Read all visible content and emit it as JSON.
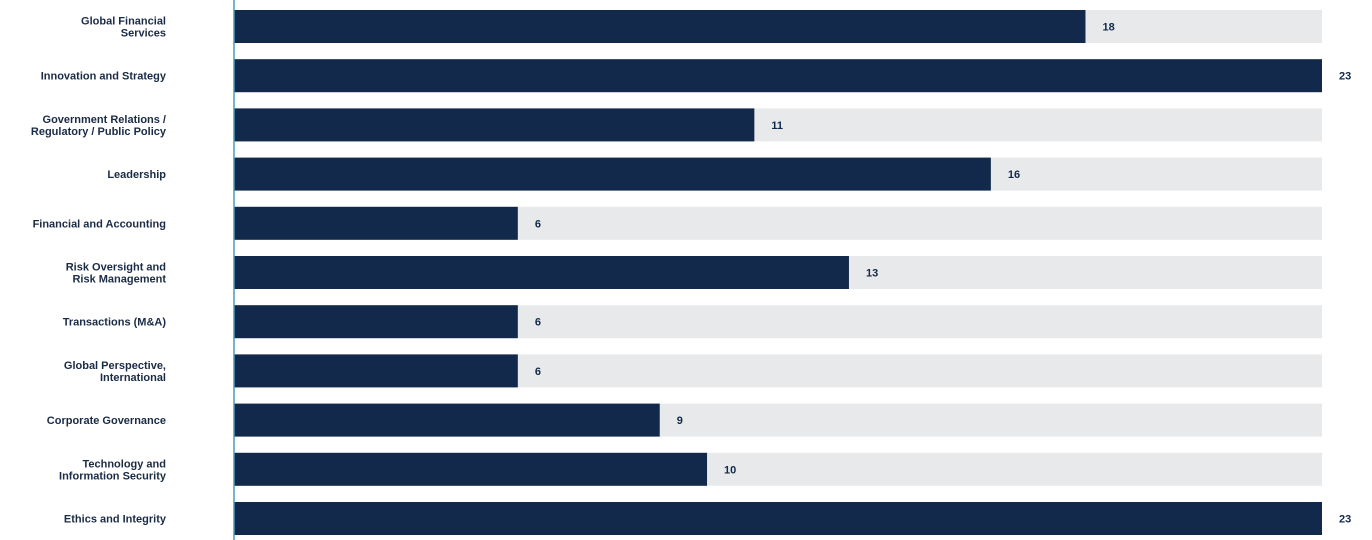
{
  "chart_data": {
    "type": "bar",
    "orientation": "horizontal",
    "title": "",
    "xlabel": "",
    "ylabel": "",
    "categories": [
      [
        "Global Financial",
        "Services"
      ],
      [
        "Innovation and Strategy"
      ],
      [
        "Government Relations /",
        "Regulatory / Public Policy"
      ],
      [
        "Leadership"
      ],
      [
        "Financial and Accounting"
      ],
      [
        "Risk Oversight and",
        "Risk Management"
      ],
      [
        "Transactions (M&A)"
      ],
      [
        "Global Perspective,",
        "International"
      ],
      [
        "Corporate Governance"
      ],
      [
        "Technology and",
        "Information Security"
      ],
      [
        "Ethics and Integrity"
      ]
    ],
    "values": [
      18,
      23,
      11,
      16,
      6,
      13,
      6,
      6,
      9,
      10,
      23
    ],
    "xlim": [
      0,
      23
    ],
    "grid": false,
    "legend": "none",
    "colors": {
      "bar": "#13294b",
      "track": "#e8e9eb",
      "axis": "#4a9db8"
    }
  }
}
